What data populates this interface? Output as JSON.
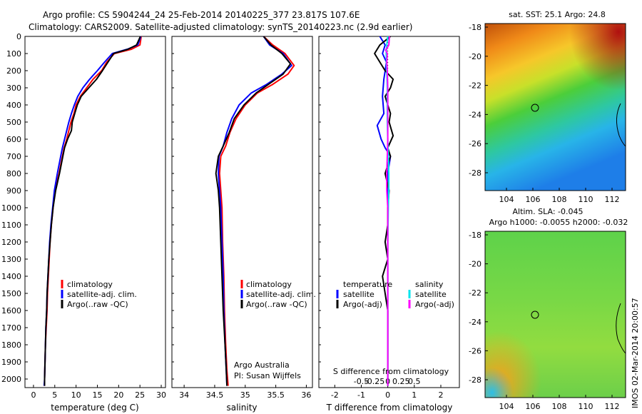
{
  "header": {
    "line1": "Argo profile: CS 5904244_24 25-Feb-2014 20140225_377 23.817S 107.6E",
    "line2": "Climatology: CARS2009. Satellite-adjusted climatology: synTS_20140223.nc (2.9d earlier)"
  },
  "depth_axis": {
    "ticks": [
      "0",
      "100",
      "200",
      "300",
      "400",
      "500",
      "600",
      "700",
      "800",
      "900",
      "1000",
      "1100",
      "1200",
      "1300",
      "1400",
      "1500",
      "1600",
      "1700",
      "1800",
      "1900",
      "2000"
    ]
  },
  "legend": {
    "climatology": "climatology",
    "satellite": "satellite-adj. clim.",
    "argo": "Argo(..raw -QC)"
  },
  "credits": {
    "line1": "Argo Australia",
    "line2": "PI: Susan Wijffels"
  },
  "diff_legend": {
    "temp_title": "temperature",
    "temp_sat": "satellite",
    "temp_argo": "Argo(-adj)",
    "sal_title": "salinity",
    "sal_sat": "satellite",
    "sal_argo": "Argo(-adj)"
  },
  "maps": {
    "sst_title": "sat. SST: 25.1  Argo: 24.8",
    "sla_title1": "Altim. SLA: -0.045",
    "sla_title2": "Argo h1000: -0.0055 h2000: -0.032",
    "yticks": [
      "-18",
      "-20",
      "-22",
      "-24",
      "-26",
      "-28"
    ],
    "xticks": [
      "104",
      "106",
      "108",
      "110",
      "112"
    ]
  },
  "stamp": "IMOS 02-Mar-2014 20:00:57",
  "colors": {
    "climatology": "#ff0000",
    "satellite": "#0000ff",
    "argo": "#000000",
    "sal_sat": "#00e5ee",
    "sal_argo": "#ff00ff"
  },
  "chart_data": [
    {
      "type": "line",
      "name": "temperature",
      "xlabel": "temperature (deg C)",
      "ylabel": "",
      "xlim": [
        -2,
        31
      ],
      "ylim": [
        2050,
        0
      ],
      "xticks": [
        "0",
        "5",
        "10",
        "15",
        "20",
        "25",
        "30"
      ],
      "series": [
        {
          "name": "climatology",
          "color": "#ff0000",
          "points": [
            [
              25.3,
              0
            ],
            [
              25,
              50
            ],
            [
              23,
              75
            ],
            [
              19,
              100
            ],
            [
              17.2,
              150
            ],
            [
              16,
              200
            ],
            [
              14,
              250
            ],
            [
              12.5,
              300
            ],
            [
              11,
              350
            ],
            [
              10,
              400
            ],
            [
              9.5,
              450
            ],
            [
              8.8,
              500
            ],
            [
              8.3,
              550
            ],
            [
              7.8,
              600
            ],
            [
              7.2,
              650
            ],
            [
              6.8,
              700
            ],
            [
              6,
              800
            ],
            [
              5,
              900
            ],
            [
              4.6,
              1000
            ],
            [
              4.2,
              1100
            ],
            [
              3.9,
              1200
            ],
            [
              3.7,
              1300
            ],
            [
              3.5,
              1400
            ],
            [
              3.3,
              1500
            ],
            [
              3.2,
              1600
            ],
            [
              3,
              1700
            ],
            [
              2.8,
              1800
            ],
            [
              2.7,
              1900
            ],
            [
              2.6,
              2000
            ],
            [
              2.6,
              2040
            ]
          ]
        },
        {
          "name": "satellite-adj. clim.",
          "color": "#0000ff",
          "points": [
            [
              25.2,
              0
            ],
            [
              24.5,
              50
            ],
            [
              22,
              75
            ],
            [
              18.5,
              100
            ],
            [
              16.7,
              150
            ],
            [
              15,
              200
            ],
            [
              13.2,
              250
            ],
            [
              11.6,
              300
            ],
            [
              10.4,
              350
            ],
            [
              9.6,
              400
            ],
            [
              8.9,
              450
            ],
            [
              8.3,
              500
            ],
            [
              7.8,
              550
            ],
            [
              7.3,
              600
            ],
            [
              6.8,
              650
            ],
            [
              6.4,
              700
            ],
            [
              5.6,
              800
            ],
            [
              4.9,
              900
            ],
            [
              4.5,
              1000
            ],
            [
              4.1,
              1100
            ],
            [
              3.8,
              1200
            ],
            [
              3.6,
              1300
            ],
            [
              3.4,
              1400
            ],
            [
              3.2,
              1500
            ],
            [
              3.1,
              1600
            ],
            [
              2.9,
              1700
            ],
            [
              2.8,
              1800
            ],
            [
              2.7,
              1900
            ],
            [
              2.6,
              2000
            ],
            [
              2.5,
              2040
            ]
          ]
        },
        {
          "name": "Argo(..raw -QC)",
          "color": "#000000",
          "points": [
            [
              25.1,
              0
            ],
            [
              24.2,
              50
            ],
            [
              22.2,
              75
            ],
            [
              18.8,
              100
            ],
            [
              17.5,
              150
            ],
            [
              16.2,
              200
            ],
            [
              14.8,
              250
            ],
            [
              13,
              300
            ],
            [
              11.2,
              350
            ],
            [
              10.3,
              400
            ],
            [
              9.7,
              450
            ],
            [
              9.1,
              500
            ],
            [
              8.9,
              550
            ],
            [
              8,
              600
            ],
            [
              7.3,
              650
            ],
            [
              6.9,
              700
            ],
            [
              6.1,
              800
            ],
            [
              5.2,
              900
            ],
            [
              4.6,
              1000
            ],
            [
              4.2,
              1100
            ],
            [
              3.9,
              1200
            ],
            [
              3.6,
              1300
            ],
            [
              3.4,
              1400
            ],
            [
              3.2,
              1500
            ],
            [
              3.1,
              1600
            ],
            [
              2.9,
              1700
            ],
            [
              2.8,
              1800
            ],
            [
              2.7,
              1900
            ],
            [
              2.6,
              2000
            ],
            [
              2.6,
              2040
            ]
          ]
        }
      ]
    },
    {
      "type": "line",
      "name": "salinity",
      "xlabel": "salinity",
      "ylabel": "",
      "xlim": [
        33.8,
        36.1
      ],
      "ylim": [
        2050,
        0
      ],
      "xticks": [
        "34",
        "34.5",
        "35",
        "35.5",
        "36"
      ],
      "series": [
        {
          "name": "climatology",
          "color": "#ff0000",
          "points": [
            [
              35.3,
              0
            ],
            [
              35.45,
              50
            ],
            [
              35.65,
              100
            ],
            [
              35.8,
              170
            ],
            [
              35.7,
              220
            ],
            [
              35.45,
              280
            ],
            [
              35.2,
              330
            ],
            [
              35,
              400
            ],
            [
              34.85,
              480
            ],
            [
              34.75,
              560
            ],
            [
              34.68,
              640
            ],
            [
              34.6,
              700
            ],
            [
              34.58,
              800
            ],
            [
              34.6,
              900
            ],
            [
              34.62,
              1000
            ],
            [
              34.63,
              1200
            ],
            [
              34.65,
              1400
            ],
            [
              34.66,
              1600
            ],
            [
              34.68,
              1800
            ],
            [
              34.7,
              1950
            ],
            [
              34.72,
              2040
            ]
          ]
        },
        {
          "name": "satellite-adj. clim.",
          "color": "#0000ff",
          "points": [
            [
              35.3,
              0
            ],
            [
              35.4,
              50
            ],
            [
              35.62,
              100
            ],
            [
              35.76,
              170
            ],
            [
              35.6,
              220
            ],
            [
              35.35,
              280
            ],
            [
              35.1,
              330
            ],
            [
              34.9,
              400
            ],
            [
              34.78,
              480
            ],
            [
              34.7,
              560
            ],
            [
              34.64,
              640
            ],
            [
              34.57,
              700
            ],
            [
              34.56,
              800
            ],
            [
              34.58,
              900
            ],
            [
              34.6,
              1000
            ],
            [
              34.62,
              1200
            ],
            [
              34.64,
              1400
            ],
            [
              34.65,
              1600
            ],
            [
              34.67,
              1800
            ],
            [
              34.69,
              1950
            ],
            [
              34.7,
              2040
            ]
          ]
        },
        {
          "name": "Argo(..raw -QC)",
          "color": "#000000",
          "points": [
            [
              35.3,
              0
            ],
            [
              35.42,
              50
            ],
            [
              35.6,
              100
            ],
            [
              35.74,
              160
            ],
            [
              35.62,
              220
            ],
            [
              35.38,
              280
            ],
            [
              35.18,
              330
            ],
            [
              34.98,
              400
            ],
            [
              34.82,
              480
            ],
            [
              34.74,
              560
            ],
            [
              34.64,
              640
            ],
            [
              34.56,
              700
            ],
            [
              34.52,
              800
            ],
            [
              34.56,
              900
            ],
            [
              34.58,
              1000
            ],
            [
              34.6,
              1200
            ],
            [
              34.62,
              1400
            ],
            [
              34.64,
              1600
            ],
            [
              34.67,
              1800
            ],
            [
              34.69,
              1950
            ],
            [
              34.7,
              2040
            ]
          ]
        }
      ]
    },
    {
      "type": "line",
      "name": "differences",
      "xlabel": "T difference from climatology",
      "ylabel": "",
      "xlim": [
        -2.6,
        2.7
      ],
      "ylim": [
        2050,
        0
      ],
      "xticks": [
        "-2",
        "-1",
        "0",
        "1",
        "2"
      ],
      "top_label": "S difference from climatology",
      "top_ticks": [
        "-0.5",
        "-0.25",
        "0",
        "0.25",
        "0.5"
      ],
      "series": [
        {
          "name": "temperature satellite",
          "color": "#0000ff",
          "points": [
            [
              -0.3,
              0
            ],
            [
              -0.1,
              50
            ],
            [
              -0.2,
              100
            ],
            [
              -0.05,
              150
            ],
            [
              -0.15,
              250
            ],
            [
              -0.2,
              350
            ],
            [
              -0.15,
              450
            ],
            [
              -0.4,
              520
            ],
            [
              -0.25,
              600
            ],
            [
              -0.1,
              650
            ],
            [
              0.1,
              700
            ],
            [
              0,
              800
            ],
            [
              0,
              900
            ],
            [
              0,
              1000
            ],
            [
              0,
              1500
            ],
            [
              0,
              2040
            ]
          ]
        },
        {
          "name": "temperature Argo(-adj)",
          "color": "#000000",
          "points": [
            [
              0.1,
              0
            ],
            [
              -0.3,
              50
            ],
            [
              -0.5,
              100
            ],
            [
              -0.3,
              150
            ],
            [
              -0.1,
              200
            ],
            [
              0.2,
              250
            ],
            [
              0.1,
              300
            ],
            [
              -0.1,
              350
            ],
            [
              0,
              400
            ],
            [
              0.1,
              450
            ],
            [
              0.05,
              500
            ],
            [
              0.2,
              580
            ],
            [
              0,
              650
            ],
            [
              0.1,
              700
            ],
            [
              -0.1,
              800
            ],
            [
              0.05,
              900
            ],
            [
              0,
              1000
            ],
            [
              0,
              1100
            ],
            [
              -0.1,
              1200
            ],
            [
              0,
              1300
            ],
            [
              -0.2,
              1400
            ],
            [
              -0.1,
              1500
            ],
            [
              0,
              1600
            ],
            [
              0,
              1800
            ],
            [
              0,
              2040
            ]
          ]
        },
        {
          "name": "salinity satellite",
          "color": "#00e5ee",
          "points": [
            [
              0,
              0
            ],
            [
              -0.02,
              50
            ],
            [
              -0.03,
              100
            ],
            [
              -0.02,
              200
            ],
            [
              -0.01,
              300
            ],
            [
              -0.01,
              400
            ],
            [
              -0.01,
              500
            ],
            [
              0,
              600
            ],
            [
              0.01,
              700
            ],
            [
              0.02,
              800
            ],
            [
              0.02,
              900
            ],
            [
              0.01,
              1000
            ],
            [
              0,
              1200
            ],
            [
              0,
              1500
            ],
            [
              0,
              2040
            ]
          ]
        },
        {
          "name": "salinity Argo(-adj)",
          "color": "#ff00ff",
          "points": [
            [
              0.03,
              0
            ],
            [
              0.02,
              50
            ],
            [
              -0.04,
              80
            ],
            [
              -0.01,
              100
            ],
            [
              -0.02,
              150
            ],
            [
              -0.01,
              200
            ],
            [
              0,
              300
            ],
            [
              0,
              400
            ],
            [
              0,
              500
            ],
            [
              0,
              600
            ],
            [
              -0.01,
              700
            ],
            [
              -0.02,
              800
            ],
            [
              -0.02,
              900
            ],
            [
              0,
              1000
            ],
            [
              0,
              1200
            ],
            [
              0,
              1500
            ],
            [
              0,
              2040
            ]
          ]
        }
      ]
    }
  ]
}
